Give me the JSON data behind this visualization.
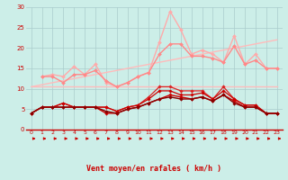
{
  "background_color": "#cceee8",
  "grid_color": "#aacccc",
  "xlabel": "Vent moyen/en rafales ( km/h )",
  "xlabel_color": "#cc0000",
  "tick_color": "#cc0000",
  "arrow_color": "#cc0000",
  "xlim": [
    -0.5,
    23.5
  ],
  "ylim": [
    0,
    30
  ],
  "yticks": [
    0,
    5,
    10,
    15,
    20,
    25,
    30
  ],
  "xticks": [
    0,
    1,
    2,
    3,
    4,
    5,
    6,
    7,
    8,
    9,
    10,
    11,
    12,
    13,
    14,
    15,
    16,
    17,
    18,
    19,
    20,
    21,
    22,
    23
  ],
  "lines": [
    {
      "x": [
        0,
        23
      ],
      "y": [
        10.5,
        10.5
      ],
      "color": "#ffbbbb",
      "lw": 1.0,
      "marker": null
    },
    {
      "x": [
        0,
        23
      ],
      "y": [
        10.5,
        22.0
      ],
      "color": "#ffbbbb",
      "lw": 1.0,
      "marker": null
    },
    {
      "x": [
        1,
        2,
        3,
        4,
        5,
        6,
        7,
        8,
        9,
        10,
        11,
        12,
        13,
        14,
        15,
        16,
        17,
        18,
        19,
        20,
        21,
        22,
        23
      ],
      "y": [
        13.0,
        13.5,
        13.0,
        15.5,
        13.5,
        16.0,
        11.5,
        10.5,
        11.5,
        13.0,
        14.0,
        21.5,
        29.0,
        24.5,
        18.5,
        19.5,
        18.5,
        16.5,
        23.0,
        16.0,
        18.5,
        15.0,
        15.0
      ],
      "color": "#ffaaaa",
      "lw": 1.0,
      "marker": "D",
      "ms": 2.0
    },
    {
      "x": [
        1,
        2,
        3,
        4,
        5,
        6,
        7,
        8,
        9,
        10,
        11,
        12,
        13,
        14,
        15,
        16,
        17,
        18,
        19,
        20,
        21,
        22,
        23
      ],
      "y": [
        13.0,
        13.0,
        11.5,
        13.5,
        13.5,
        14.5,
        12.0,
        10.5,
        11.5,
        13.0,
        14.0,
        18.5,
        21.0,
        21.0,
        18.0,
        18.0,
        17.5,
        16.5,
        20.5,
        16.0,
        17.0,
        15.0,
        15.0
      ],
      "color": "#ff8888",
      "lw": 1.0,
      "marker": "D",
      "ms": 2.0
    },
    {
      "x": [
        0,
        1,
        2,
        3,
        4,
        5,
        6,
        7,
        8,
        9,
        10,
        11,
        12,
        13,
        14,
        15,
        16,
        17,
        18,
        19,
        20,
        21,
        22,
        23
      ],
      "y": [
        4.0,
        5.5,
        5.5,
        6.5,
        5.5,
        5.5,
        5.5,
        5.5,
        4.5,
        5.5,
        6.0,
        8.0,
        10.5,
        10.5,
        9.5,
        9.5,
        9.5,
        7.5,
        10.5,
        7.5,
        6.0,
        6.0,
        4.0,
        4.0
      ],
      "color": "#dd2222",
      "lw": 0.9,
      "marker": "D",
      "ms": 1.8
    },
    {
      "x": [
        0,
        1,
        2,
        3,
        4,
        5,
        6,
        7,
        8,
        9,
        10,
        11,
        12,
        13,
        14,
        15,
        16,
        17,
        18,
        19,
        20,
        21,
        22,
        23
      ],
      "y": [
        4.0,
        5.5,
        5.5,
        6.5,
        5.5,
        5.5,
        5.5,
        5.5,
        4.5,
        5.5,
        6.0,
        7.5,
        9.5,
        9.5,
        8.5,
        8.5,
        9.0,
        7.5,
        9.5,
        7.5,
        6.0,
        6.0,
        4.0,
        4.0
      ],
      "color": "#cc0000",
      "lw": 0.9,
      "marker": "D",
      "ms": 1.8
    },
    {
      "x": [
        0,
        1,
        2,
        3,
        4,
        5,
        6,
        7,
        8,
        9,
        10,
        11,
        12,
        13,
        14,
        15,
        16,
        17,
        18,
        19,
        20,
        21,
        22,
        23
      ],
      "y": [
        4.0,
        5.5,
        5.5,
        5.5,
        5.5,
        5.5,
        5.5,
        4.0,
        4.0,
        5.0,
        5.5,
        6.5,
        7.5,
        8.5,
        8.0,
        7.5,
        8.0,
        7.0,
        8.5,
        7.0,
        5.5,
        5.5,
        4.0,
        4.0
      ],
      "color": "#cc0000",
      "lw": 1.0,
      "marker": "D",
      "ms": 1.8
    },
    {
      "x": [
        0,
        1,
        2,
        3,
        4,
        5,
        6,
        7,
        8,
        9,
        10,
        11,
        12,
        13,
        14,
        15,
        16,
        17,
        18,
        19,
        20,
        21,
        22,
        23
      ],
      "y": [
        4.0,
        5.5,
        5.5,
        5.5,
        5.5,
        5.5,
        5.5,
        4.5,
        4.0,
        5.0,
        5.5,
        6.5,
        7.5,
        8.0,
        7.5,
        7.5,
        8.0,
        7.0,
        8.5,
        6.5,
        5.5,
        5.5,
        4.0,
        4.0
      ],
      "color": "#880000",
      "lw": 1.0,
      "marker": "D",
      "ms": 1.8
    }
  ]
}
